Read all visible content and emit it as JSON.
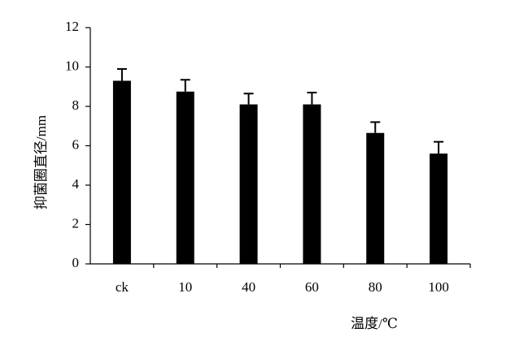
{
  "chart_data": {
    "type": "bar",
    "categories": [
      "ck",
      "10",
      "40",
      "60",
      "80",
      "100"
    ],
    "values": [
      9.3,
      8.75,
      8.1,
      8.1,
      6.65,
      5.6
    ],
    "errors": [
      0.6,
      0.6,
      0.55,
      0.6,
      0.55,
      0.6
    ],
    "color": "#000000",
    "ylim": [
      0,
      12
    ],
    "yticks": [
      0,
      2,
      4,
      6,
      8,
      10,
      12
    ],
    "y_label": "抑菌圈直径/mm",
    "x_label": "温度/℃",
    "grid": false
  }
}
